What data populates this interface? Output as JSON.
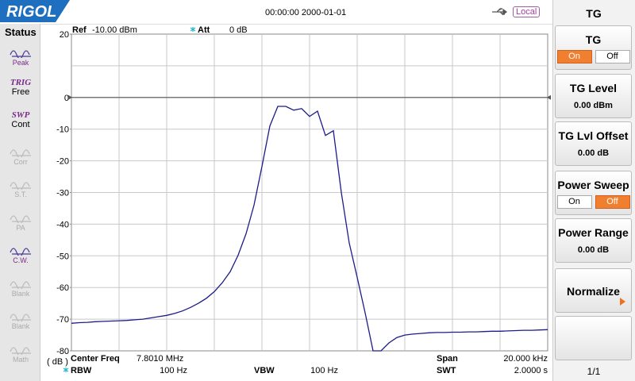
{
  "header": {
    "logo": "RIGOL",
    "datetime": "00:00:00 2000-01-01",
    "remote": "Local"
  },
  "sidebar": {
    "title": "Status",
    "items": [
      {
        "label": "Peak",
        "enabled": true
      },
      {
        "tag": "TRIG",
        "label": "Free",
        "enabled": true
      },
      {
        "tag": "SWP",
        "label": "Cont",
        "enabled": true
      },
      {
        "label": "Corr",
        "enabled": false
      },
      {
        "label": "S.T.",
        "enabled": false
      },
      {
        "label": "PA",
        "enabled": false
      },
      {
        "label": "C.W.",
        "enabled": true
      },
      {
        "label": "Blank",
        "enabled": false
      },
      {
        "label": "Blank",
        "enabled": false
      },
      {
        "label": "Math",
        "enabled": false
      }
    ]
  },
  "plot_info": {
    "ref_label": "Ref",
    "ref_value": "-10.00 dBm",
    "att_label": "Att",
    "att_value": "0 dB",
    "unit": "( dB )",
    "center_label": "Center Freq",
    "center_value": "7.8010 MHz",
    "span_label": "Span",
    "span_value": "20.000 kHz",
    "rbw_label": "RBW",
    "rbw_value": "100 Hz",
    "vbw_label": "VBW",
    "vbw_value": "100 Hz",
    "swt_label": "SWT",
    "swt_value": "2.0000 s"
  },
  "chart_data": {
    "type": "line",
    "color": "#1c1c8a",
    "grid": true,
    "ylim": [
      -80,
      20
    ],
    "yticks": [
      20,
      0,
      -10,
      -20,
      -30,
      -40,
      -50,
      -60,
      -70,
      -80
    ],
    "ref_line": 0,
    "values": [
      -71.3,
      -71.1,
      -71,
      -70.8,
      -70.7,
      -70.6,
      -70.5,
      -70.4,
      -70.2,
      -70,
      -69.6,
      -69.2,
      -68.8,
      -68.2,
      -67.4,
      -66.3,
      -65,
      -63.4,
      -61.3,
      -58.5,
      -55,
      -49.8,
      -43,
      -34,
      -21.8,
      -9,
      -2.8,
      -2.8,
      -4,
      -3.5,
      -6,
      -4.3,
      -12,
      -10.5,
      -30,
      -46,
      -56.8,
      -68,
      -80,
      -80,
      -77.5,
      -75.8,
      -75,
      -74.7,
      -74.5,
      -74.3,
      -74.2,
      -74.2,
      -74.1,
      -74.1,
      -74,
      -74,
      -73.9,
      -73.8,
      -73.8,
      -73.7,
      -73.6,
      -73.5,
      -73.5,
      -73.4,
      -73.3
    ]
  },
  "menu": {
    "title": "TG",
    "page": "1/1",
    "items": [
      {
        "label": "TG",
        "options": [
          "On",
          "Off"
        ],
        "active": 0
      },
      {
        "label": "TG Level",
        "value": "0.00 dBm"
      },
      {
        "label": "TG Lvl Offset",
        "value": "0.00 dB"
      },
      {
        "label": "Power Sweep",
        "options": [
          "On",
          "Off"
        ],
        "active": 1
      },
      {
        "label": "Power Range",
        "value": "0.00 dB"
      },
      {
        "label": "Normalize"
      }
    ]
  }
}
